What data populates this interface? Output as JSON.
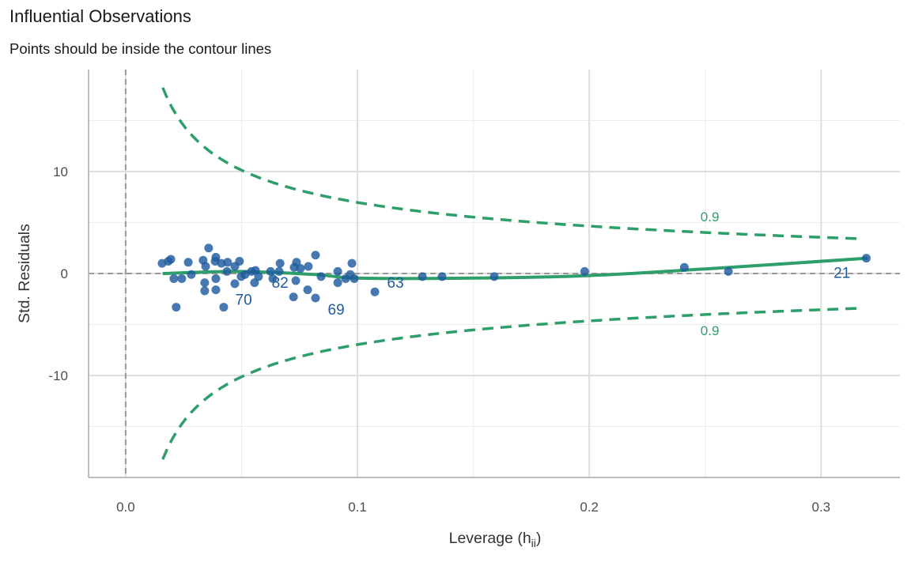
{
  "chart_data": {
    "type": "scatter",
    "title": "Influential Observations",
    "subtitle": "Points should be inside the contour lines",
    "xlabel": "Leverage (h",
    "xlabel_sub": "ii",
    "xlabel_close": ")",
    "ylabel": "Std. Residuals",
    "xlim": [
      -0.016,
      0.334
    ],
    "ylim": [
      -20,
      20
    ],
    "x_ticks": [
      0.0,
      0.1,
      0.2,
      0.3
    ],
    "x_tick_labels": [
      "0.0",
      "0.1",
      "0.2",
      "0.3"
    ],
    "y_ticks": [
      -10,
      0,
      10
    ],
    "y_tick_labels": [
      "-10",
      "0",
      "10"
    ],
    "grid": true,
    "colors": {
      "points": "#1f5a9e",
      "smooth": "#2e9e6a",
      "contour": "#2e9e6a",
      "reference": "#999999"
    },
    "points": [
      [
        0.0157,
        1.0
      ],
      [
        0.0184,
        1.2
      ],
      [
        0.0195,
        1.4
      ],
      [
        0.0218,
        -3.3
      ],
      [
        0.0208,
        -0.5
      ],
      [
        0.0242,
        -0.5
      ],
      [
        0.027,
        1.1
      ],
      [
        0.0283,
        -0.1
      ],
      [
        0.0358,
        2.5
      ],
      [
        0.0334,
        1.3
      ],
      [
        0.0345,
        0.7
      ],
      [
        0.0341,
        -0.9
      ],
      [
        0.0341,
        -1.7
      ],
      [
        0.0389,
        1.6
      ],
      [
        0.0386,
        1.2
      ],
      [
        0.0413,
        1.0
      ],
      [
        0.0389,
        -1.6
      ],
      [
        0.0389,
        -0.5
      ],
      [
        0.0423,
        -3.3
      ],
      [
        0.044,
        1.1
      ],
      [
        0.0437,
        0.2
      ],
      [
        0.0471,
        0.7
      ],
      [
        0.0491,
        1.2
      ],
      [
        0.0471,
        -1.0
      ],
      [
        0.0498,
        -0.3
      ],
      [
        0.0515,
        -0.1
      ],
      [
        0.0543,
        0.2
      ],
      [
        0.056,
        0.3
      ],
      [
        0.0556,
        -0.9
      ],
      [
        0.0573,
        -0.3
      ],
      [
        0.0625,
        0.2
      ],
      [
        0.0635,
        -0.5
      ],
      [
        0.0666,
        1.0
      ],
      [
        0.0662,
        0.2
      ],
      [
        0.0727,
        0.6
      ],
      [
        0.0737,
        1.1
      ],
      [
        0.0734,
        -0.7
      ],
      [
        0.0724,
        -2.3
      ],
      [
        0.0754,
        0.5
      ],
      [
        0.0788,
        0.7
      ],
      [
        0.0819,
        1.8
      ],
      [
        0.0785,
        -1.6
      ],
      [
        0.0819,
        -2.4
      ],
      [
        0.0843,
        -0.3
      ],
      [
        0.0915,
        0.2
      ],
      [
        0.0915,
        -0.9
      ],
      [
        0.0949,
        -0.5
      ],
      [
        0.0976,
        1.0
      ],
      [
        0.0969,
        -0.1
      ],
      [
        0.0986,
        -0.5
      ],
      [
        0.1075,
        -1.8
      ],
      [
        0.128,
        -0.3
      ],
      [
        0.1365,
        -0.3
      ],
      [
        0.159,
        -0.3
      ],
      [
        0.198,
        0.2
      ],
      [
        0.241,
        0.6
      ],
      [
        0.26,
        0.2
      ],
      [
        0.3195,
        1.5
      ]
    ],
    "point_labels": [
      {
        "text": "70",
        "x": 0.0509,
        "y": -2.5
      },
      {
        "text": "82",
        "x": 0.0666,
        "y": -0.85
      },
      {
        "text": "69",
        "x": 0.0908,
        "y": -3.5
      },
      {
        "text": "63",
        "x": 0.1164,
        "y": -0.85
      },
      {
        "text": "21",
        "x": 0.309,
        "y": 0.1
      }
    ],
    "smooth": [
      [
        0.016,
        0.0
      ],
      [
        0.048,
        0.2
      ],
      [
        0.082,
        -0.1
      ],
      [
        0.1,
        -0.45
      ],
      [
        0.15,
        -0.45
      ],
      [
        0.2,
        -0.2
      ],
      [
        0.25,
        0.45
      ],
      [
        0.32,
        1.5
      ]
    ],
    "contour_level": 0.9,
    "contour_labels": [
      {
        "text": "0.9",
        "x": 0.252,
        "y": 5.6
      },
      {
        "text": "0.9",
        "x": 0.252,
        "y": -5.6
      }
    ]
  }
}
